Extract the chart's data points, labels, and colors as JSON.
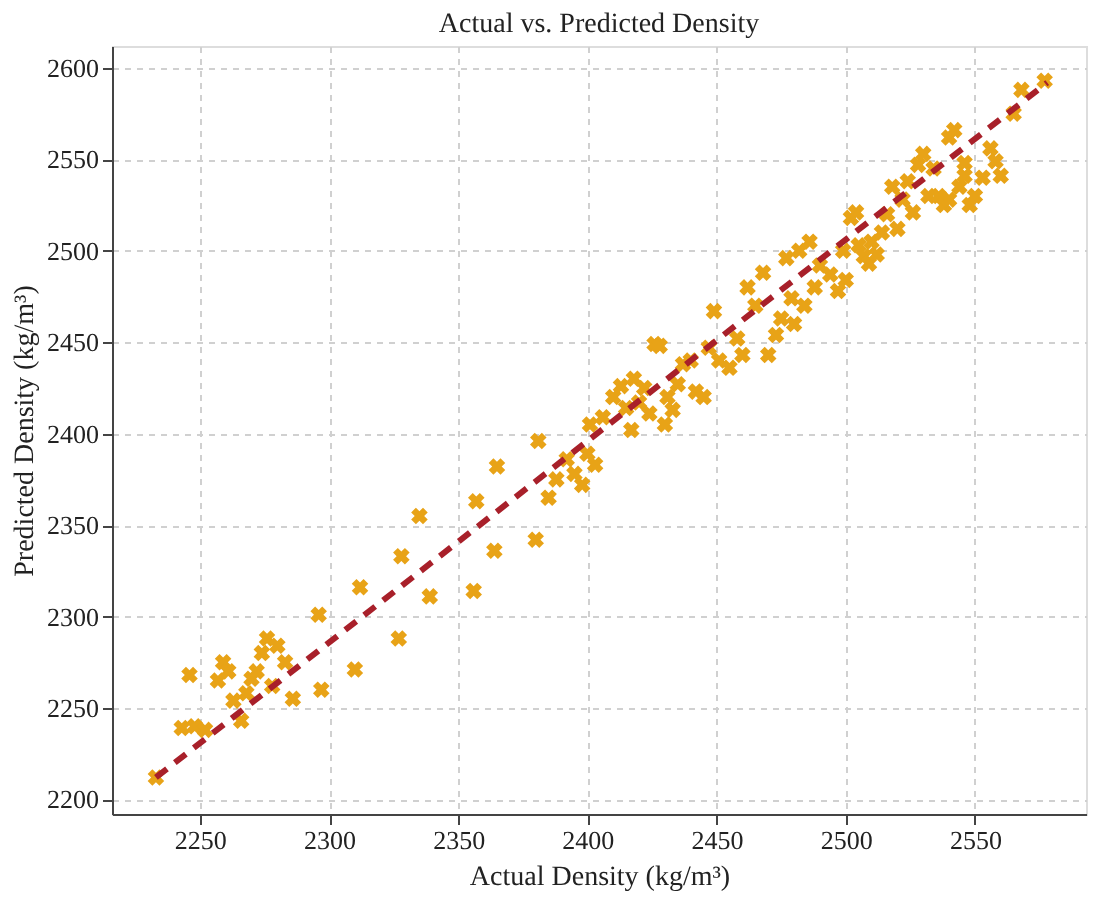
{
  "chart_data": {
    "type": "scatter",
    "title": "Actual vs. Predicted Density",
    "xlabel": "Actual Density (kg/m³)",
    "ylabel": "Predicted Density (kg/m³)",
    "xlim": [
      2216,
      2593
    ],
    "ylim": [
      2192,
      2612
    ],
    "xticks": [
      2250,
      2300,
      2350,
      2400,
      2450,
      2500,
      2550
    ],
    "yticks": [
      2200,
      2250,
      2300,
      2350,
      2400,
      2450,
      2500,
      2550,
      2600
    ],
    "grid": true,
    "legend": false,
    "series": [
      {
        "type": "scatter",
        "marker": "cross",
        "color": "#e8a317",
        "x": [
          2233,
          2243,
          2248,
          2252,
          2246,
          2257,
          2259,
          2261,
          2263,
          2266,
          2268,
          2270,
          2272,
          2274,
          2276,
          2278,
          2280,
          2283,
          2286,
          2296,
          2297,
          2310,
          2312,
          2327,
          2328,
          2335,
          2339,
          2356,
          2357,
          2364,
          2365,
          2380,
          2381,
          2385,
          2388,
          2392,
          2395,
          2398,
          2400,
          2401,
          2403,
          2406,
          2410,
          2413,
          2415,
          2417,
          2418,
          2420,
          2422,
          2424,
          2426,
          2428,
          2430,
          2431,
          2433,
          2435,
          2437,
          2440,
          2442,
          2445,
          2447,
          2449,
          2451,
          2455,
          2458,
          2460,
          2462,
          2465,
          2468,
          2470,
          2473,
          2475,
          2477,
          2479,
          2480,
          2482,
          2484,
          2486,
          2488,
          2490,
          2494,
          2497,
          2499,
          2500,
          2502,
          2504,
          2505,
          2507,
          2509,
          2510,
          2512,
          2514,
          2516,
          2518,
          2520,
          2522,
          2524,
          2526,
          2528,
          2530,
          2532,
          2534,
          2536,
          2538,
          2540,
          2542,
          2544,
          2546,
          2548,
          2550,
          2553,
          2556,
          2558,
          2560,
          2565,
          2568,
          2577,
          2546,
          2540
        ],
        "values": [
          2212,
          2239,
          2240,
          2238,
          2268,
          2265,
          2275,
          2270,
          2254,
          2243,
          2258,
          2266,
          2270,
          2280,
          2288,
          2262,
          2284,
          2275,
          2255,
          2301,
          2260,
          2271,
          2316,
          2288,
          2333,
          2355,
          2311,
          2314,
          2363,
          2336,
          2382,
          2342,
          2396,
          2365,
          2375,
          2386,
          2378,
          2372,
          2389,
          2405,
          2383,
          2409,
          2420,
          2426,
          2414,
          2402,
          2430,
          2417,
          2425,
          2411,
          2449,
          2448,
          2405,
          2420,
          2413,
          2427,
          2438,
          2440,
          2423,
          2420,
          2447,
          2467,
          2440,
          2436,
          2452,
          2443,
          2480,
          2470,
          2488,
          2443,
          2454,
          2463,
          2496,
          2474,
          2460,
          2500,
          2470,
          2505,
          2480,
          2492,
          2487,
          2478,
          2500,
          2484,
          2518,
          2521,
          2503,
          2497,
          2493,
          2505,
          2498,
          2510,
          2520,
          2535,
          2512,
          2528,
          2538,
          2521,
          2547,
          2553,
          2530,
          2545,
          2530,
          2525,
          2562,
          2566,
          2535,
          2548,
          2525,
          2530,
          2540,
          2556,
          2549,
          2541,
          2575,
          2588,
          2593,
          2541,
          2528
        ]
      },
      {
        "type": "line",
        "line_style": "dashed",
        "color": "#a8202a",
        "x": [
          2233,
          2578
        ],
        "values": [
          2212,
          2592
        ]
      }
    ]
  }
}
